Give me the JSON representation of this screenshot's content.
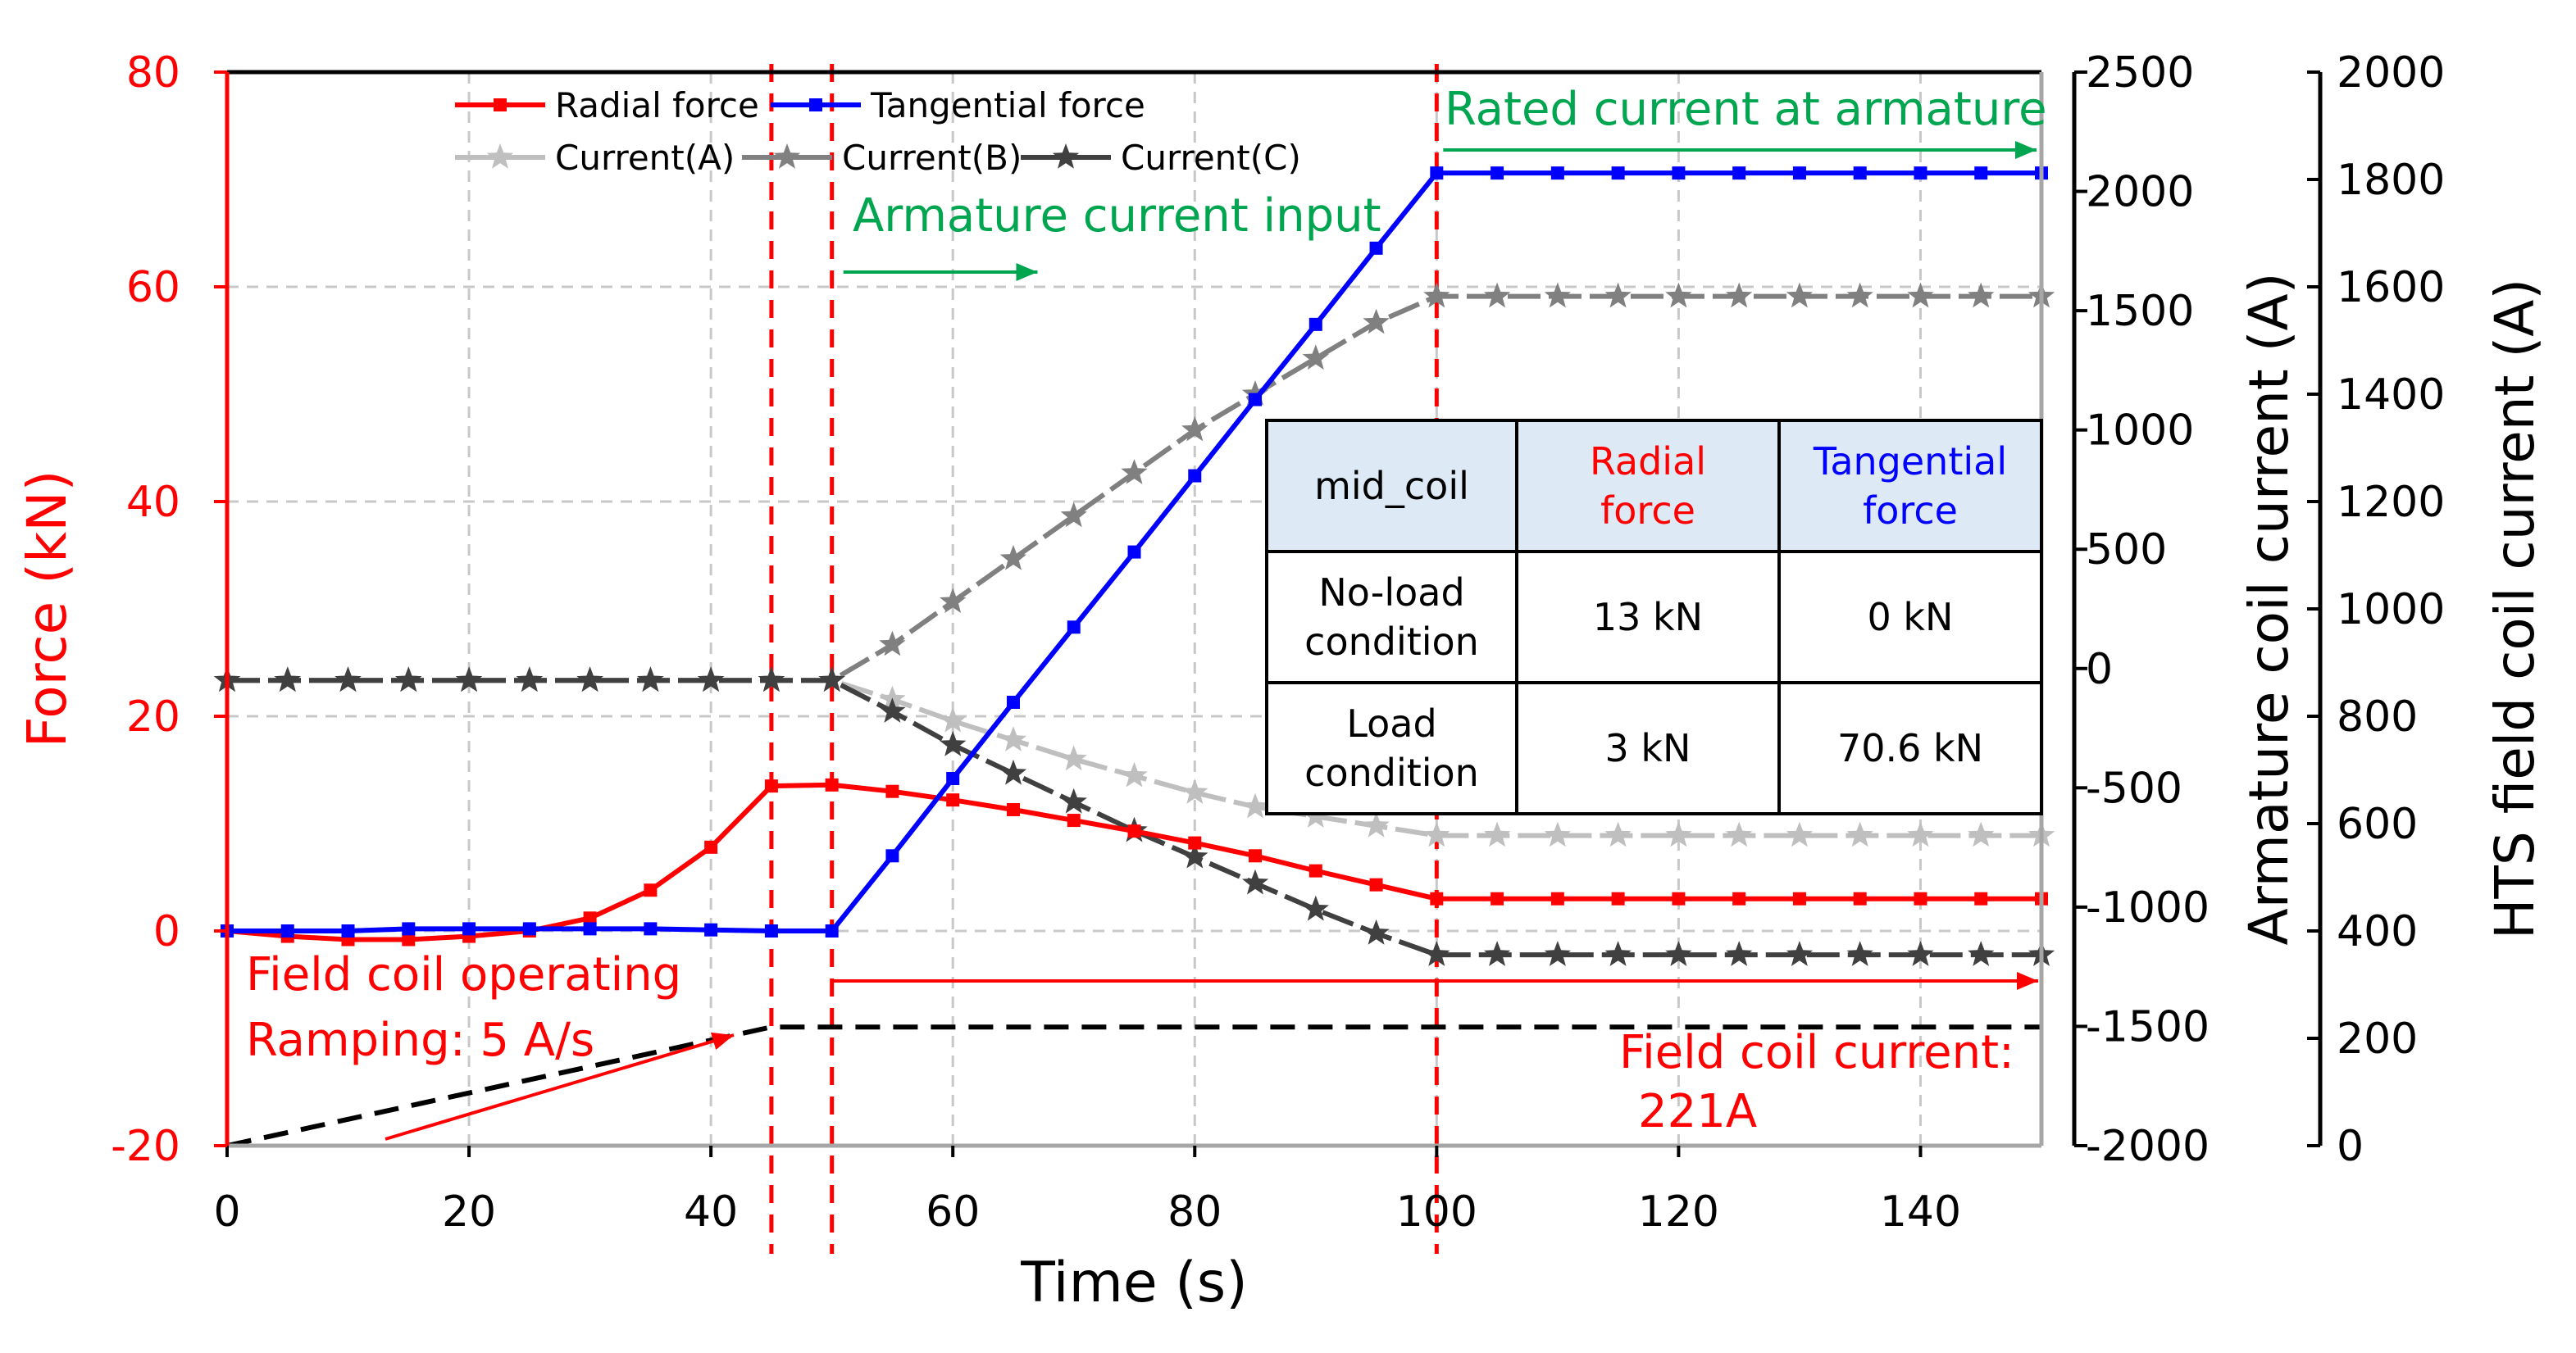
{
  "chart_data": {
    "type": "line",
    "title": "",
    "xlabel": "Time (s)",
    "xlim": [
      0,
      150
    ],
    "x_ticks": [
      "0",
      "20",
      "40",
      "60",
      "80",
      "100",
      "120",
      "140"
    ],
    "axes": {
      "force": {
        "label": "Force (kN)",
        "ylim": [
          -20,
          80
        ],
        "ticks": [
          "-20",
          "0",
          "20",
          "40",
          "60",
          "80"
        ],
        "color": "#ff0000"
      },
      "armature": {
        "label": "Armature coil current (A)",
        "ylim": [
          -2000,
          2500
        ],
        "ticks": [
          "-2000",
          "-1500",
          "-1000",
          "-500",
          "0",
          "500",
          "1000",
          "1500",
          "2000",
          "2500"
        ],
        "color": "#000000"
      },
      "hts": {
        "label": "HTS field coil current (A)",
        "ylim": [
          0,
          2000
        ],
        "ticks": [
          "0",
          "200",
          "400",
          "600",
          "800",
          "1000",
          "1200",
          "1400",
          "1600",
          "1800",
          "2000"
        ],
        "color": "#000000"
      }
    },
    "legend": {
      "position": "top-left",
      "entries": [
        "Radial force",
        "Tangential force",
        "Current(A)",
        "Current(B)",
        "Current(C)"
      ]
    },
    "series": [
      {
        "name": "Radial force",
        "axis": "force",
        "color": "#ff0000",
        "marker": "square",
        "x": [
          0,
          5,
          10,
          15,
          20,
          25,
          30,
          35,
          40,
          45,
          50,
          55,
          60,
          65,
          70,
          75,
          80,
          85,
          90,
          95,
          100,
          105,
          110,
          115,
          120,
          125,
          130,
          135,
          140,
          145,
          150
        ],
        "y": [
          0,
          -0.5,
          -0.8,
          -0.8,
          -0.5,
          0,
          1.2,
          3.8,
          7.8,
          13.5,
          13.6,
          13,
          12.2,
          11.3,
          10.3,
          9.3,
          8.2,
          7,
          5.6,
          4.3,
          3,
          3,
          3,
          3,
          3,
          3,
          3,
          3,
          3,
          3,
          3
        ]
      },
      {
        "name": "Tangential force",
        "axis": "force",
        "color": "#0000ff",
        "marker": "square",
        "x": [
          0,
          5,
          10,
          15,
          20,
          25,
          30,
          35,
          40,
          45,
          50,
          55,
          60,
          65,
          70,
          75,
          80,
          85,
          90,
          95,
          100,
          105,
          110,
          115,
          120,
          125,
          130,
          135,
          140,
          145,
          150
        ],
        "y": [
          0,
          0,
          0,
          0.2,
          0.2,
          0.2,
          0.2,
          0.2,
          0.1,
          0,
          0,
          7,
          14.2,
          21.3,
          28.3,
          35.3,
          42.4,
          49.5,
          56.5,
          63.6,
          70.6,
          70.6,
          70.6,
          70.6,
          70.6,
          70.6,
          70.6,
          70.6,
          70.6,
          70.6,
          70.6
        ]
      },
      {
        "name": "Current(A)",
        "axis": "armature",
        "color": "#bfbfbf",
        "marker": "star",
        "x": [
          0,
          5,
          10,
          15,
          20,
          25,
          30,
          35,
          40,
          45,
          50,
          55,
          60,
          65,
          70,
          75,
          80,
          85,
          90,
          95,
          100,
          105,
          110,
          115,
          120,
          125,
          130,
          135,
          140,
          145,
          150
        ],
        "y": [
          -50,
          -50,
          -50,
          -50,
          -50,
          -50,
          -50,
          -50,
          -50,
          -50,
          -50,
          -130,
          -220,
          -300,
          -380,
          -450,
          -520,
          -580,
          -620,
          -660,
          -700,
          -700,
          -700,
          -700,
          -700,
          -700,
          -700,
          -700,
          -700,
          -700,
          -700
        ]
      },
      {
        "name": "Current(B)",
        "axis": "armature",
        "color": "#808080",
        "marker": "star",
        "x": [
          0,
          5,
          10,
          15,
          20,
          25,
          30,
          35,
          40,
          45,
          50,
          55,
          60,
          65,
          70,
          75,
          80,
          85,
          90,
          95,
          100,
          105,
          110,
          115,
          120,
          125,
          130,
          135,
          140,
          145,
          150
        ],
        "y": [
          -50,
          -50,
          -50,
          -50,
          -50,
          -50,
          -50,
          -50,
          -50,
          -50,
          -50,
          100,
          280,
          460,
          640,
          820,
          1000,
          1150,
          1300,
          1450,
          1560,
          1560,
          1560,
          1560,
          1560,
          1560,
          1560,
          1560,
          1560,
          1560,
          1560
        ]
      },
      {
        "name": "Current(C)",
        "axis": "armature",
        "color": "#404040",
        "marker": "star",
        "x": [
          0,
          5,
          10,
          15,
          20,
          25,
          30,
          35,
          40,
          45,
          50,
          55,
          60,
          65,
          70,
          75,
          80,
          85,
          90,
          95,
          100,
          105,
          110,
          115,
          120,
          125,
          130,
          135,
          140,
          145,
          150
        ],
        "y": [
          -50,
          -50,
          -50,
          -50,
          -50,
          -50,
          -50,
          -50,
          -50,
          -50,
          -50,
          -180,
          -320,
          -440,
          -560,
          -680,
          -790,
          -900,
          -1010,
          -1110,
          -1200,
          -1200,
          -1200,
          -1200,
          -1200,
          -1200,
          -1200,
          -1200,
          -1200,
          -1200,
          -1200
        ]
      },
      {
        "name": "Field coil current",
        "axis": "hts",
        "color": "#000000",
        "dash": true,
        "x": [
          0,
          45,
          150
        ],
        "y": [
          0,
          221,
          221
        ]
      }
    ],
    "vlines": [
      45,
      50,
      100
    ],
    "annotations": [
      {
        "id": "rated",
        "text": "Rated current at armature",
        "color": "#00a550"
      },
      {
        "id": "arm_input",
        "text": "Armature current input",
        "color": "#00a550"
      },
      {
        "id": "field_op",
        "text": "Field coil operating",
        "color": "#ff0000"
      },
      {
        "id": "ramping",
        "text": "Ramping: 5 A/s",
        "color": "#ff0000"
      },
      {
        "id": "fcc1",
        "text": "Field coil current:",
        "color": "#ff0000"
      },
      {
        "id": "fcc2",
        "text": "221A",
        "color": "#ff0000"
      }
    ],
    "table": {
      "header": [
        "mid_coil",
        "Radial force",
        "Tangential force"
      ],
      "header_colors": [
        "#000000",
        "#ff0000",
        "#0000ff"
      ],
      "rows": [
        [
          "No-load condition",
          "13 kN",
          "0 kN"
        ],
        [
          "Load condition",
          "3 kN",
          "70.6 kN"
        ]
      ]
    }
  }
}
